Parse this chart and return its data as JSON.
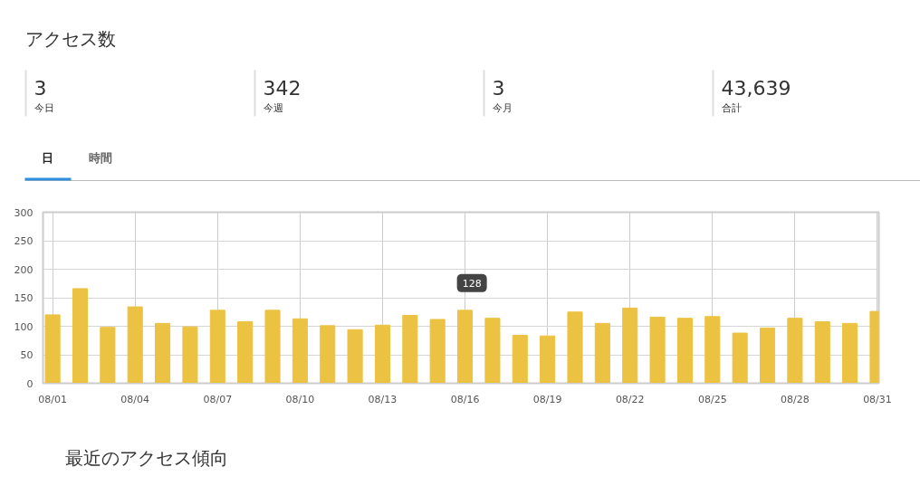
{
  "chart_data": [
    {
      "type": "other",
      "title": "アクセス数",
      "annotations": [
        "3",
        "今日",
        "342",
        "今週",
        "3",
        "今月",
        "43,639",
        "合計",
        "日",
        "時間"
      ]
    },
    {
      "type": "bar",
      "categories": [
        "08/01",
        null,
        null,
        "08/04",
        null,
        null,
        "08/07",
        null,
        null,
        "08/10",
        null,
        null,
        "08/13",
        null,
        null,
        "08/16",
        null,
        null,
        "08/19",
        null,
        null,
        "08/22",
        null,
        null,
        "08/25",
        null,
        null,
        "08/28",
        null,
        null,
        "08/31"
      ],
      "values": [
        120,
        166,
        98,
        134,
        105,
        99,
        128,
        108,
        128,
        113,
        101,
        94,
        102,
        119,
        112,
        128,
        114,
        84,
        83,
        125,
        105,
        132,
        116,
        114,
        117,
        88,
        97,
        114,
        108,
        105,
        126
      ],
      "color": "#ecc242",
      "ylim": [
        0,
        300
      ],
      "yticks": [
        0,
        50,
        100,
        150,
        200,
        250,
        300
      ],
      "grid": true,
      "annotations": [
        {
          "text": "128",
          "x": "08/16",
          "y": 128
        },
        "最近のアクセス傾向"
      ]
    }
  ]
}
